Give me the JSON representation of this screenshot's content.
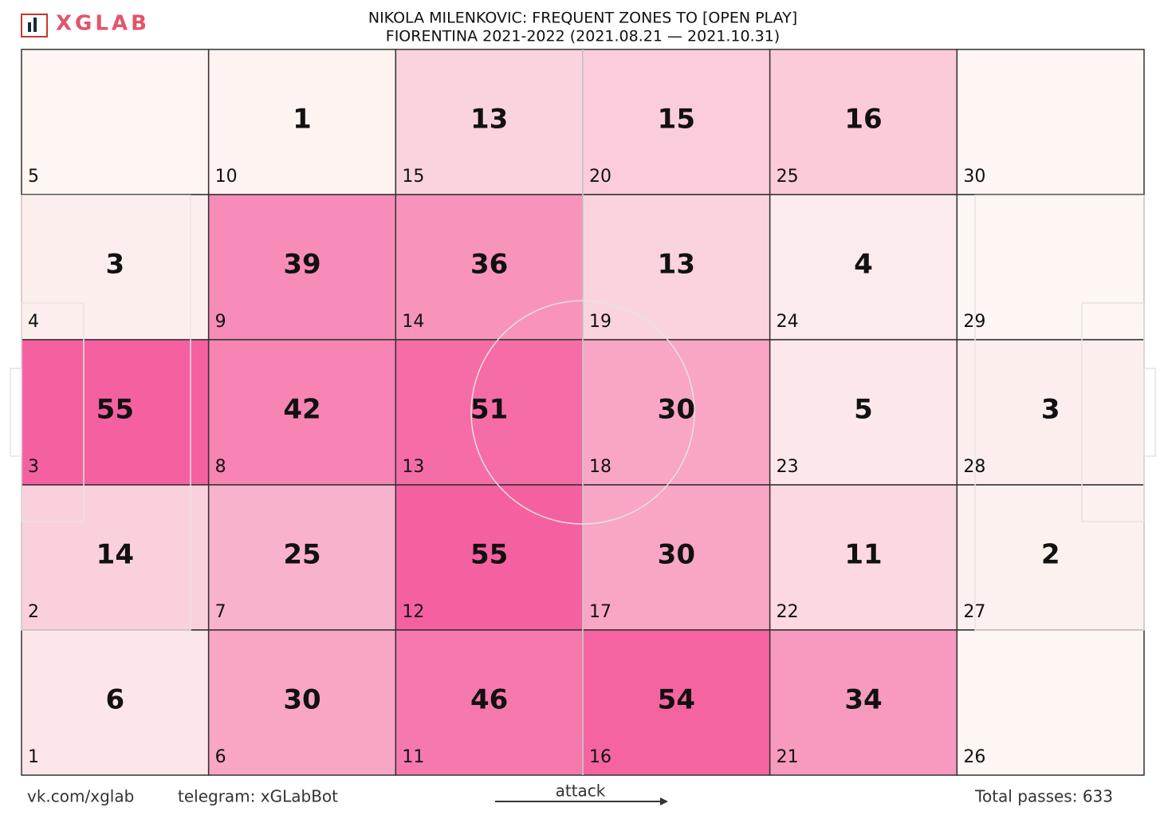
{
  "chart_data": {
    "type": "heatmap",
    "brand": "XGLAB",
    "title": "NIKOLA MILENKOVIC: FREQUENT ZONES TO [OPEN PLAY]",
    "subtitle": "FIORENTINA 2021-2022 (2021.08.21 — 2021.10.31)",
    "values": [
      [
        null,
        1,
        13,
        15,
        16,
        null
      ],
      [
        3,
        39,
        36,
        13,
        4,
        null
      ],
      [
        55,
        42,
        51,
        30,
        5,
        3
      ],
      [
        14,
        25,
        55,
        30,
        11,
        2
      ],
      [
        6,
        30,
        46,
        54,
        34,
        null
      ]
    ],
    "zones": [
      [
        5,
        10,
        15,
        20,
        25,
        30
      ],
      [
        4,
        9,
        14,
        19,
        24,
        29
      ],
      [
        3,
        8,
        13,
        18,
        23,
        28
      ],
      [
        2,
        7,
        12,
        17,
        22,
        27
      ],
      [
        1,
        6,
        11,
        16,
        21,
        26
      ]
    ],
    "colormap": [
      "#fdf6f2",
      "#f561a0"
    ],
    "footer_left": "vk.com/xglab",
    "footer_telegram": "telegram: xGLabBot",
    "direction_label": "attack",
    "total": "Total passes: 633"
  }
}
